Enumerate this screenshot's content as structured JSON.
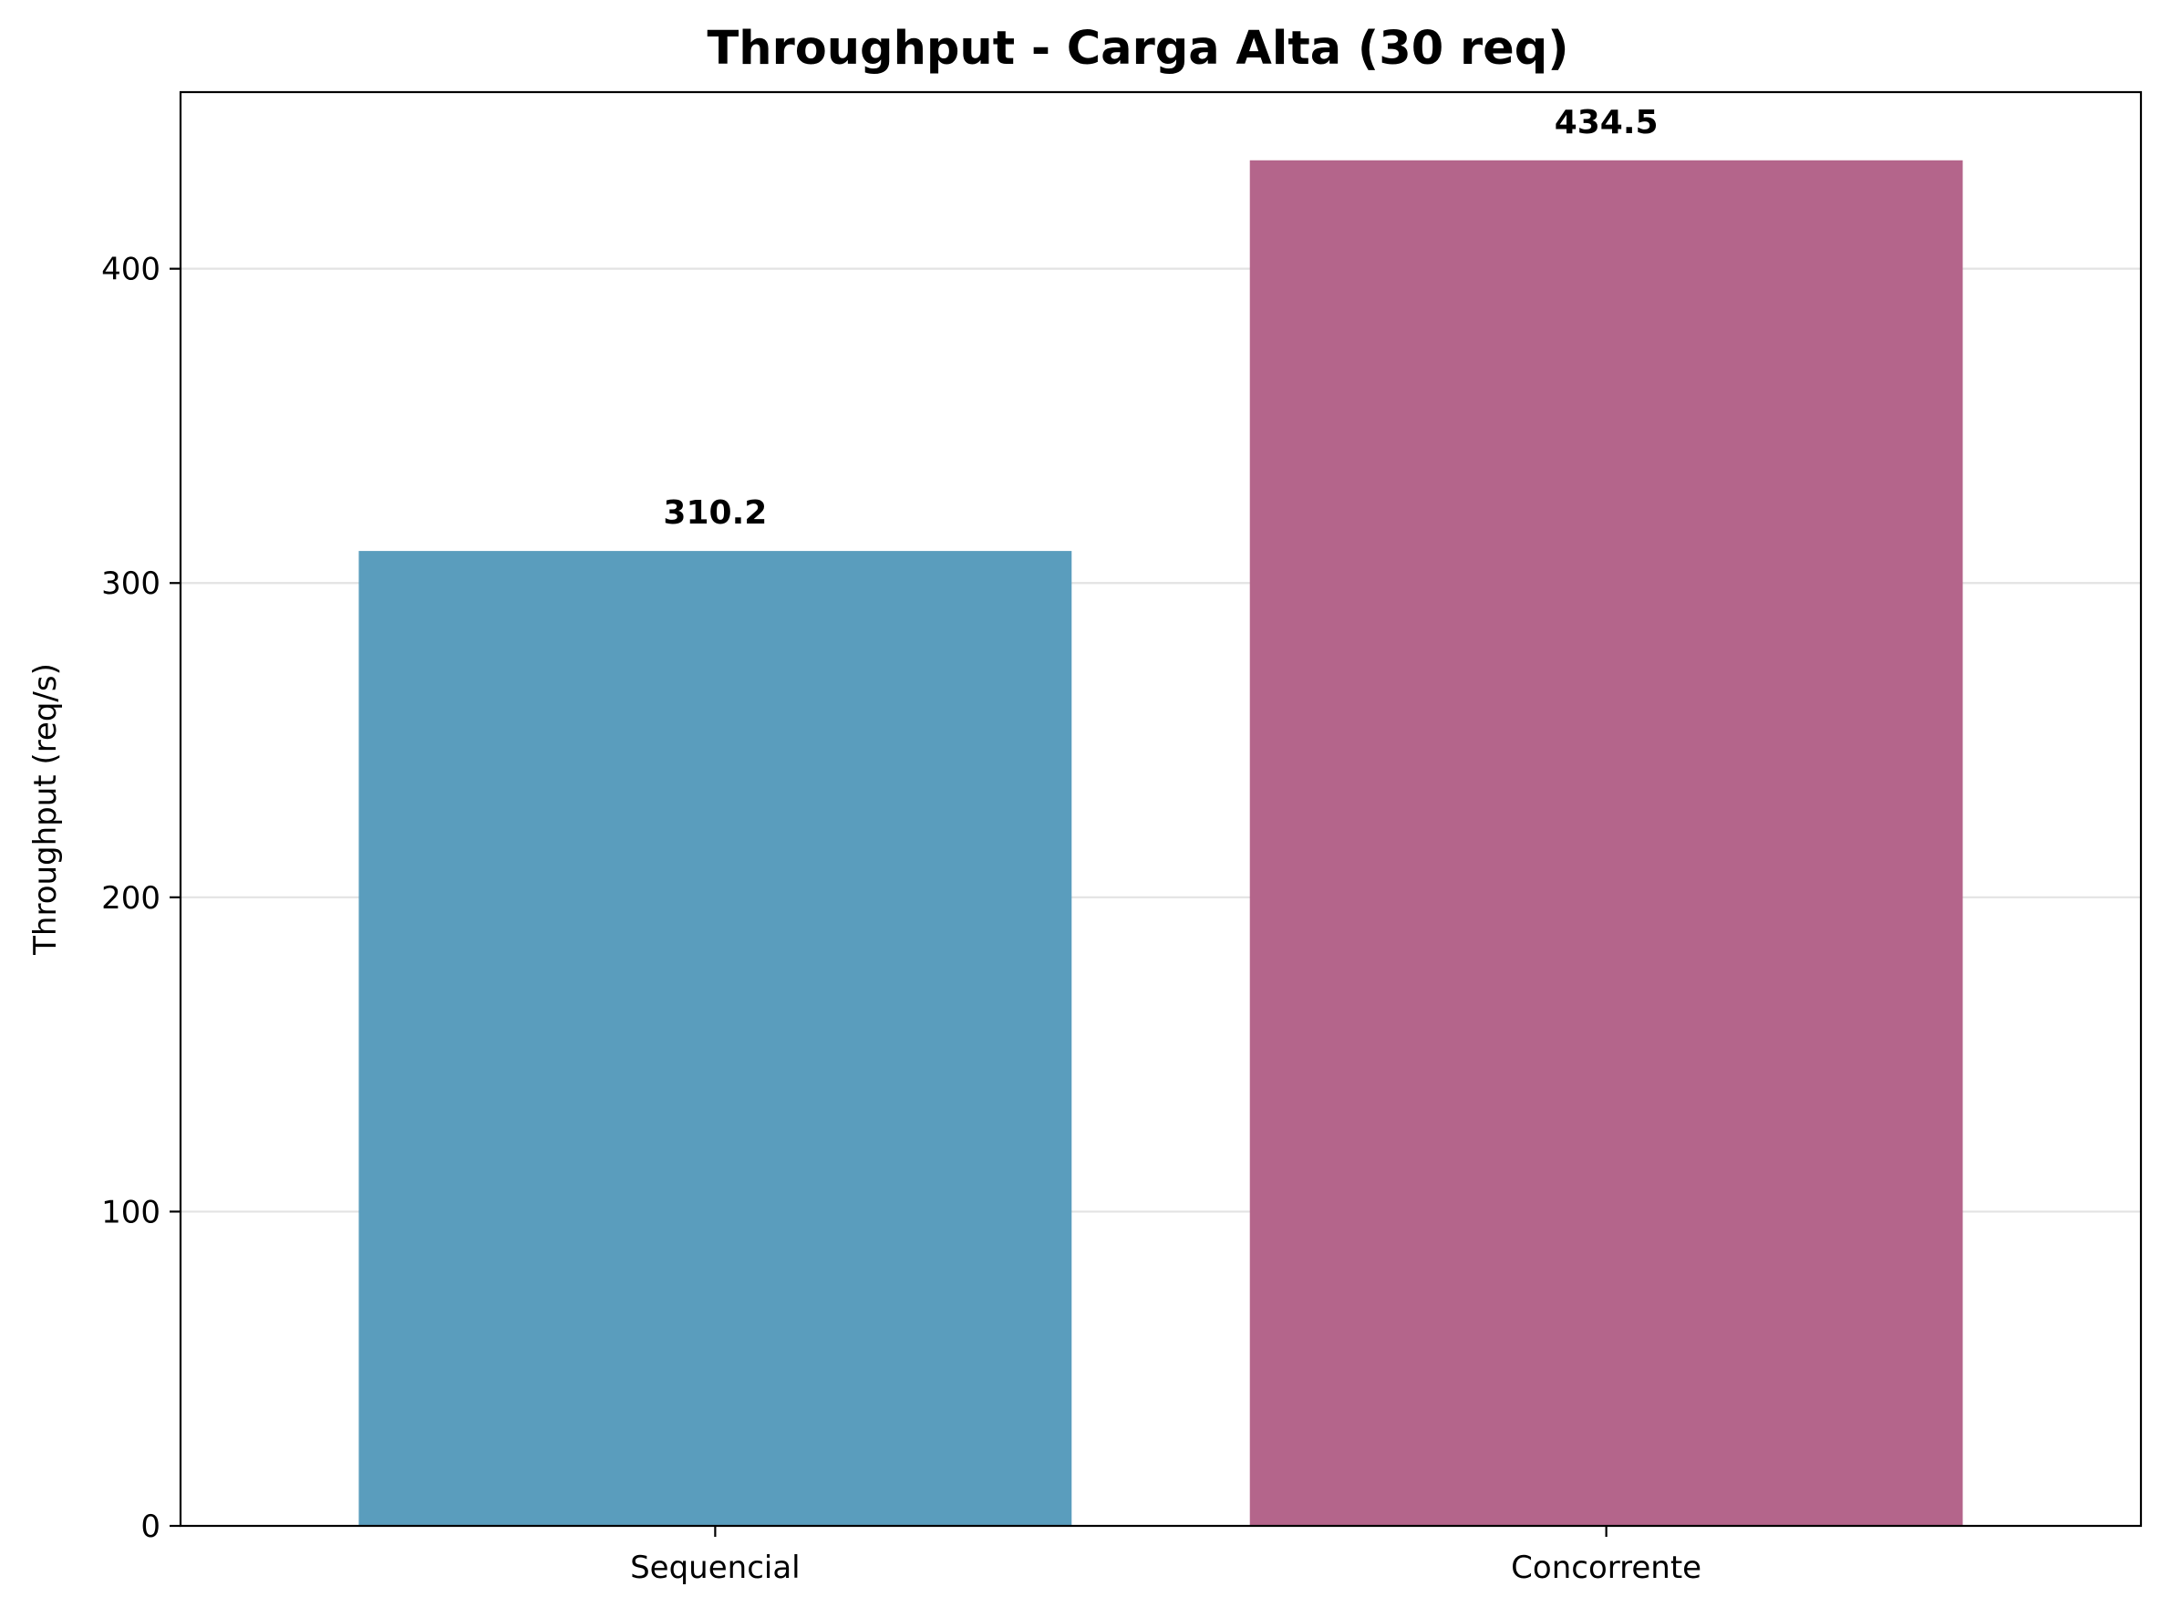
{
  "chart_data": {
    "type": "bar",
    "title": "Throughput - Carga Alta (30 req)",
    "xlabel": "",
    "ylabel": "Throughput (req/s)",
    "categories": [
      "Sequencial",
      "Concorrente"
    ],
    "values": [
      310.2,
      434.5
    ],
    "value_labels": [
      "310.2",
      "434.5"
    ],
    "colors": [
      "#5a9dbd",
      "#b4658b"
    ],
    "ylim": [
      0,
      456.2
    ],
    "yticks": [
      0,
      100,
      200,
      300,
      400
    ],
    "ytick_labels": [
      "0",
      "100",
      "200",
      "300",
      "400"
    ],
    "grid": "y",
    "legend": "none"
  }
}
